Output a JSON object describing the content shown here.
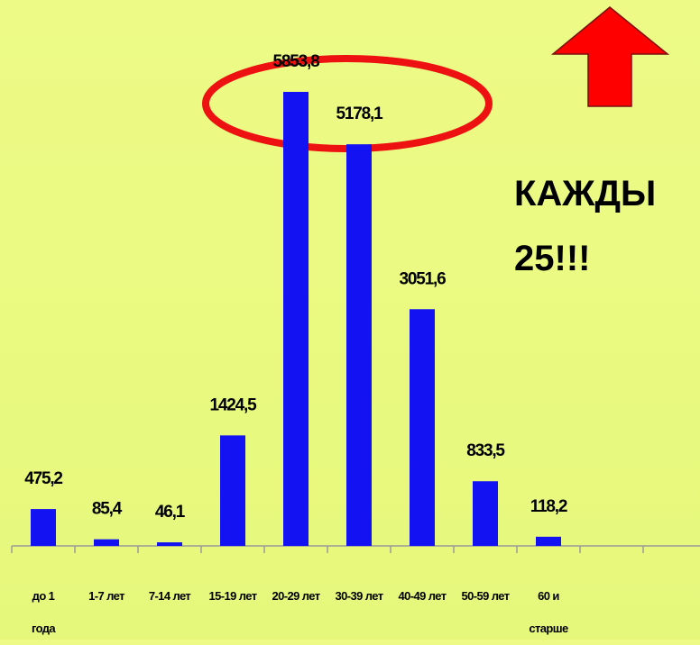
{
  "chart_data": {
    "type": "bar",
    "categories": [
      "до 1\nгода",
      "1-7 лет",
      "7-14 лет",
      "15-19 лет",
      "20-29 лет",
      "30-39 лет",
      "40-49 лет",
      "50-59 лет",
      "60 и\nстарше",
      null,
      null
    ],
    "values": [
      475.2,
      85.4,
      46.1,
      1424.5,
      5853.8,
      5178.1,
      3051.6,
      833.5,
      118.2,
      null,
      null
    ],
    "value_labels": [
      "475,2",
      "85,4",
      "46,1",
      "1424,5",
      "5853,8",
      "5178,1",
      "3051,6",
      "833,5",
      "118,2",
      null,
      null
    ],
    "color": "#1212f2",
    "ylim": [
      0,
      6000
    ],
    "annotations": [
      "КАЖДЫ",
      "25!!!"
    ]
  }
}
